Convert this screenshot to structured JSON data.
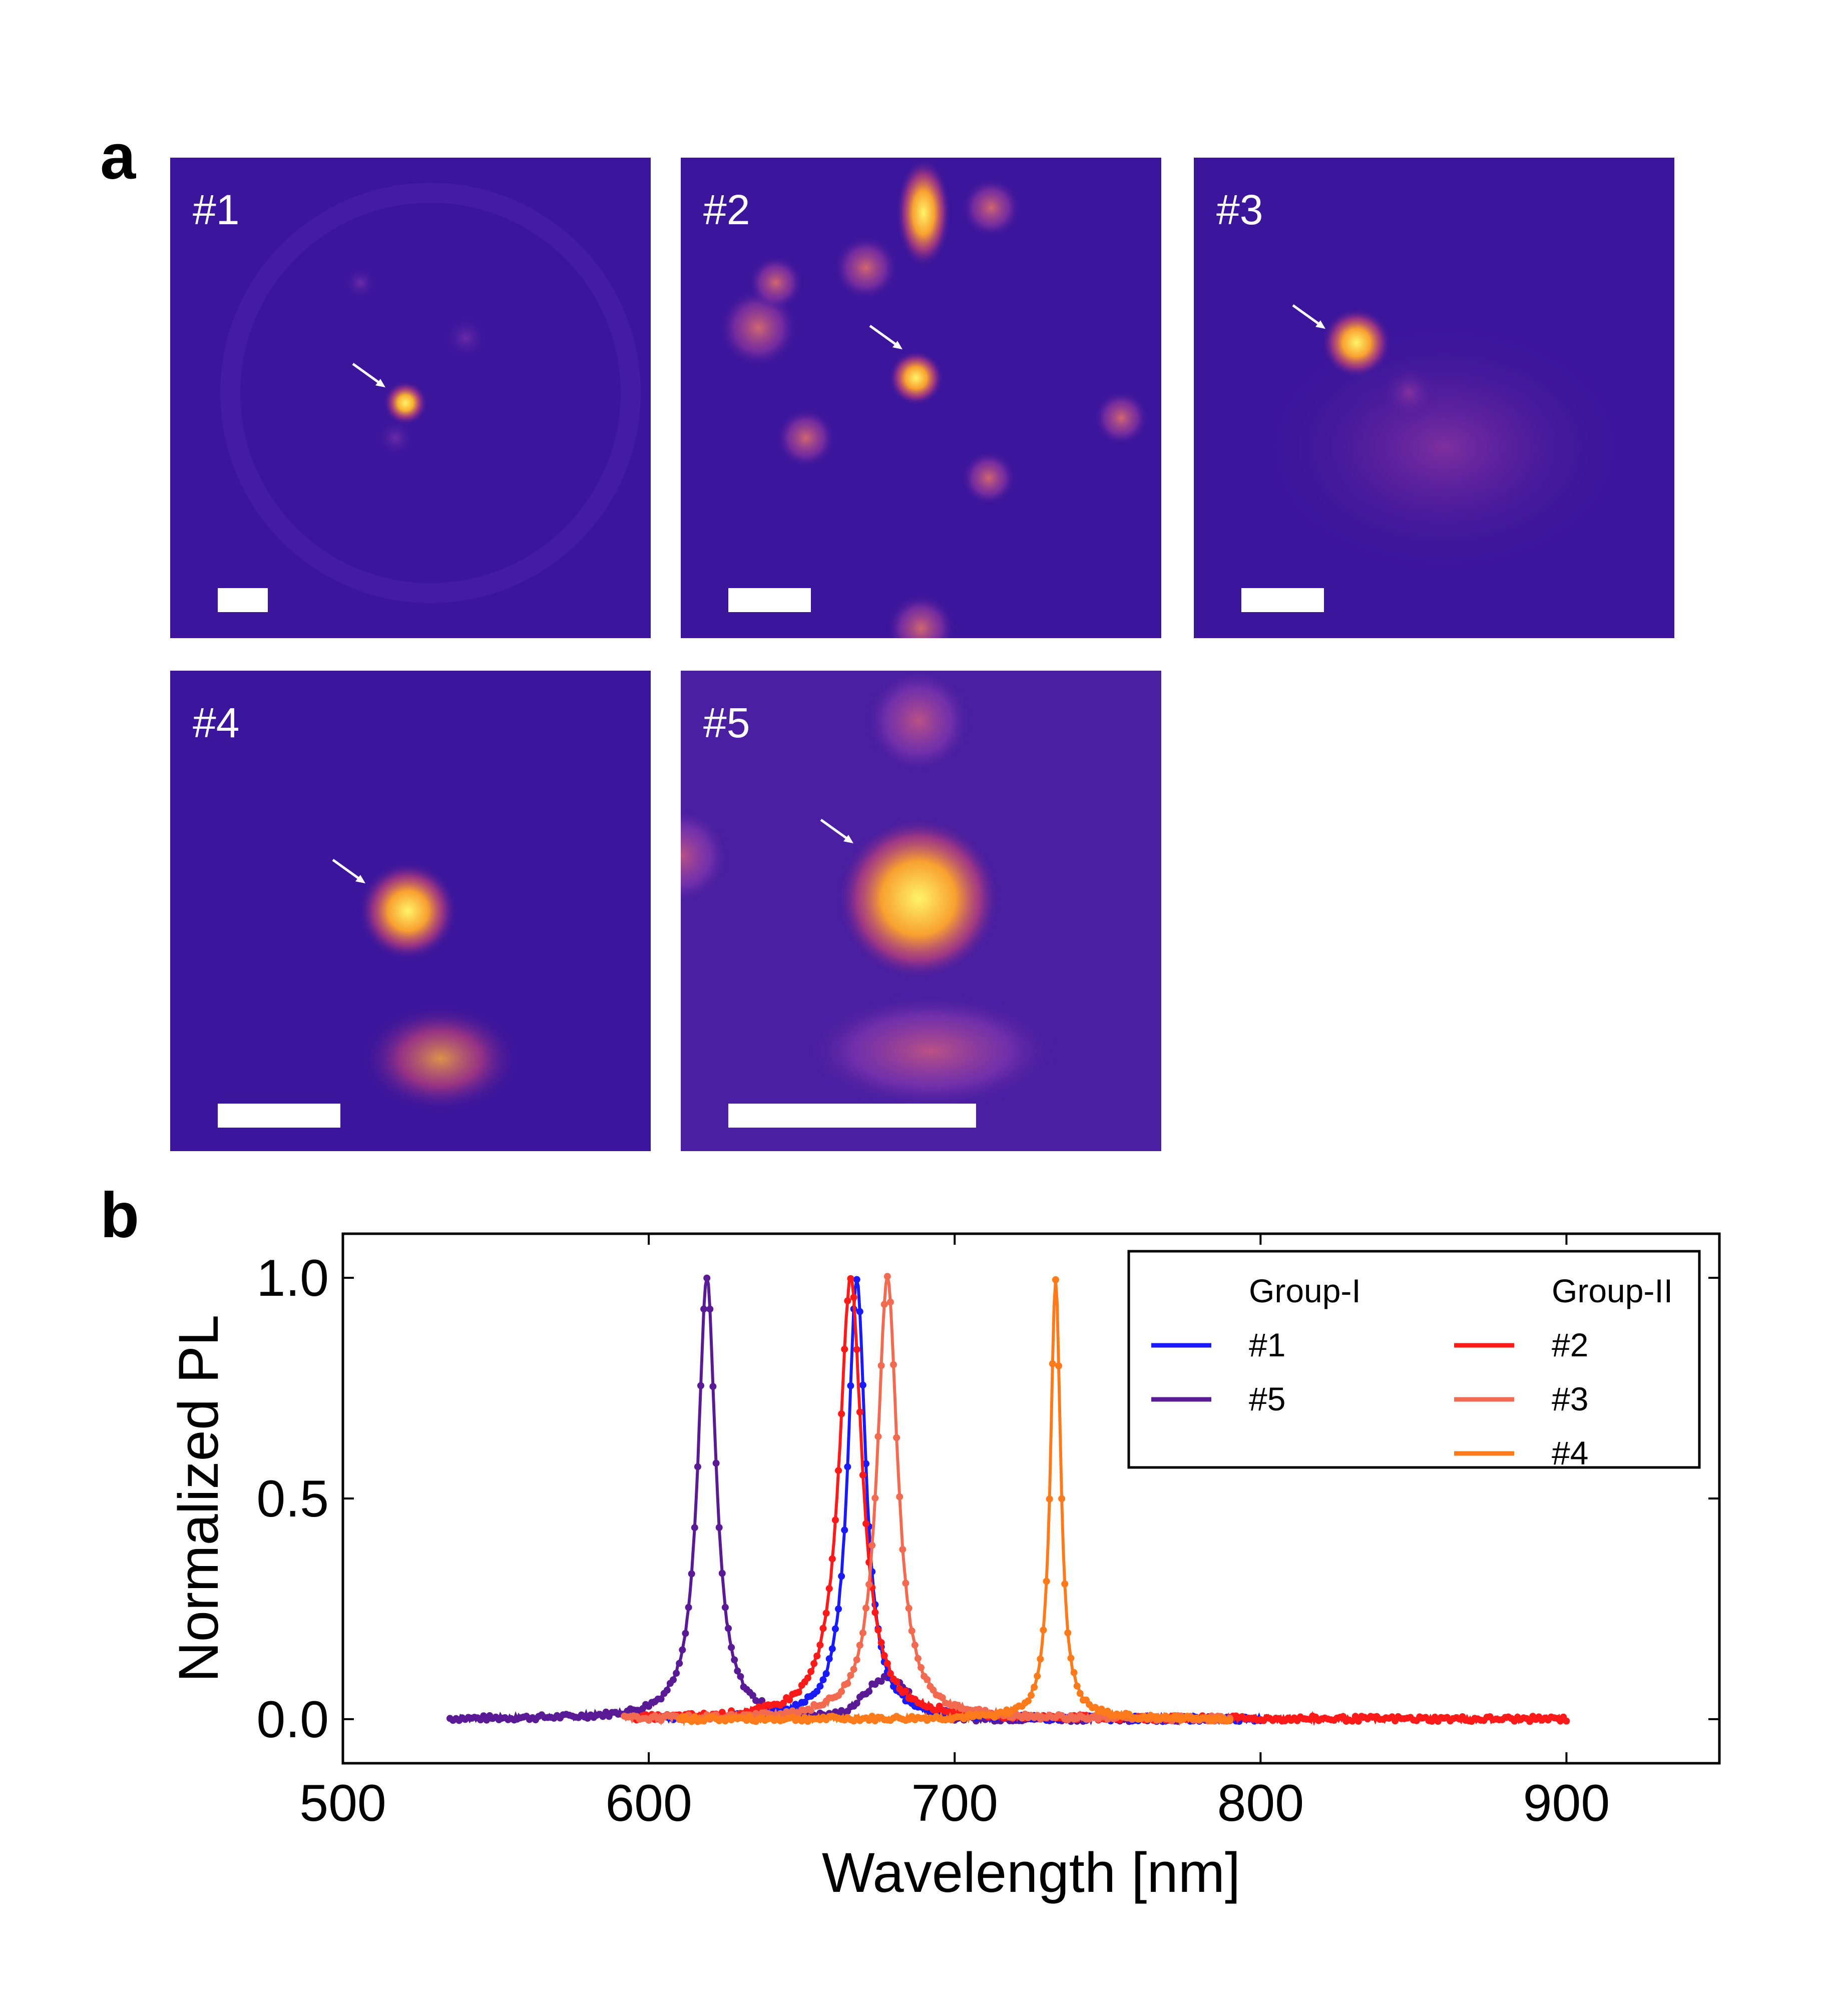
{
  "panel_a_label": "a",
  "panel_b_label": "b",
  "images": [
    {
      "label": "#1"
    },
    {
      "label": "#2"
    },
    {
      "label": "#3"
    },
    {
      "label": "#4"
    },
    {
      "label": "#5"
    }
  ],
  "colors": {
    "image_background": "#3b159c",
    "hot_spot": "#ffe14a",
    "group1_1": "#1a1aff",
    "group1_5": "#5a1a96",
    "group2_2": "#ff1a1a",
    "group2_3": "#f26a50",
    "group2_4": "#ff7a1a"
  },
  "chart_data": {
    "type": "line",
    "xlabel": "Wavelength [nm]",
    "ylabel": "Normalized PL",
    "xlim": [
      500,
      950
    ],
    "ylim": [
      -0.1,
      1.1
    ],
    "x_ticks": [
      500,
      600,
      700,
      800,
      900
    ],
    "y_ticks": [
      0.0,
      0.5,
      1.0
    ],
    "x_tick_labels": [
      "500",
      "600",
      "700",
      "800",
      "900"
    ],
    "y_tick_labels": [
      "0.0",
      "0.5",
      "1.0"
    ],
    "legend_position": "top-right",
    "legend_groups": [
      {
        "title": "Group-I",
        "entries": [
          {
            "name": "#1",
            "color": "#1a1aff"
          },
          {
            "name": "#5",
            "color": "#5a1a96"
          }
        ]
      },
      {
        "title": "Group-II",
        "entries": [
          {
            "name": "#2",
            "color": "#ff1a1a"
          },
          {
            "name": "#3",
            "color": "#f26a50"
          },
          {
            "name": "#4",
            "color": "#ff7a1a"
          }
        ]
      }
    ],
    "series": [
      {
        "name": "#5",
        "color": "#5a1a96",
        "x_range": [
          535,
          790
        ],
        "peak_x": 619,
        "fwhm": 7,
        "side_peak_x": 678,
        "side_peak_y": 0.09
      },
      {
        "name": "#1",
        "color": "#1a1aff",
        "x_range": [
          600,
          800
        ],
        "peak_x": 668,
        "fwhm": 7
      },
      {
        "name": "#2",
        "color": "#ff1a1a",
        "x_range": [
          595,
          900
        ],
        "peak_x": 666,
        "fwhm": 9
      },
      {
        "name": "#3",
        "color": "#f26a50",
        "x_range": [
          592,
          790
        ],
        "peak_x": 678,
        "fwhm": 8
      },
      {
        "name": "#4",
        "color": "#ff7a1a",
        "x_range": [
          610,
          790
        ],
        "peak_x": 733,
        "fwhm": 4
      }
    ]
  }
}
